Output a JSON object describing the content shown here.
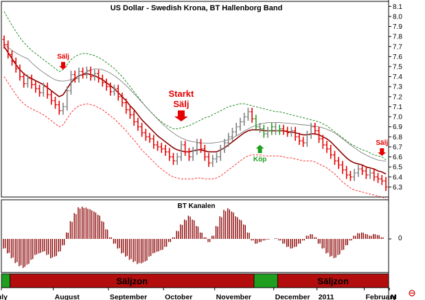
{
  "chart_data": {
    "type": "line",
    "title": "US Dollar - Swedish Krona, BT Hallenborg Band",
    "price_panel": {
      "ylim": [
        6.2,
        8.15
      ],
      "yticks": [
        "8.1",
        "8.0",
        "7.9",
        "7.8",
        "7.7",
        "7.6",
        "7.5",
        "7.4",
        "7.3",
        "7.2",
        "7.1",
        "7.0",
        "6.9",
        "6.8",
        "6.7",
        "6.6",
        "6.5",
        "6.4",
        "6.3"
      ],
      "ytick_values": [
        8.1,
        8.0,
        7.9,
        7.8,
        7.7,
        7.6,
        7.5,
        7.4,
        7.3,
        7.2,
        7.1,
        7.0,
        6.9,
        6.8,
        6.7,
        6.6,
        6.5,
        6.4,
        6.3
      ],
      "close": [
        7.72,
        7.62,
        7.55,
        7.48,
        7.4,
        7.33,
        7.38,
        7.32,
        7.28,
        7.24,
        7.3,
        7.22,
        7.16,
        7.12,
        7.06,
        7.1,
        7.26,
        7.42,
        7.38,
        7.45,
        7.42,
        7.46,
        7.4,
        7.43,
        7.38,
        7.34,
        7.3,
        7.25,
        7.28,
        7.2,
        7.14,
        7.07,
        7.02,
        6.95,
        6.9,
        6.84,
        6.8,
        6.78,
        6.72,
        6.7,
        6.68,
        6.65,
        6.6,
        6.56,
        6.6,
        6.72,
        6.65,
        6.6,
        6.66,
        6.74,
        6.68,
        6.6,
        6.54,
        6.58,
        6.6,
        6.68,
        6.74,
        6.8,
        6.85,
        6.9,
        6.95,
        7.0,
        7.05,
        6.98,
        6.9,
        6.88,
        6.83,
        6.86,
        6.9,
        6.86,
        6.88,
        6.86,
        6.84,
        6.86,
        6.8,
        6.76,
        6.74,
        6.82,
        6.9,
        6.86,
        6.78,
        6.72,
        6.68,
        6.62,
        6.56,
        6.52,
        6.47,
        6.42,
        6.4,
        6.44,
        6.48,
        6.46,
        6.42,
        6.44,
        6.4,
        6.38,
        6.36,
        6.3
      ],
      "series": [
        {
          "name": "",
          "role": "moving-average",
          "color": "#8b0000",
          "values": [
            7.7,
            7.64,
            7.58,
            7.52,
            7.47,
            7.43,
            7.4,
            7.38,
            7.36,
            7.34,
            7.32,
            7.29,
            7.26,
            7.23,
            7.2,
            7.22,
            7.28,
            7.34,
            7.38,
            7.41,
            7.42,
            7.43,
            7.42,
            7.41,
            7.39,
            7.37,
            7.34,
            7.31,
            7.28,
            7.24,
            7.2,
            7.16,
            7.11,
            7.07,
            7.02,
            6.97,
            6.93,
            6.89,
            6.85,
            6.81,
            6.78,
            6.75,
            6.72,
            6.69,
            6.67,
            6.66,
            6.65,
            6.65,
            6.66,
            6.67,
            6.67,
            6.66,
            6.65,
            6.65,
            6.65,
            6.67,
            6.69,
            6.72,
            6.75,
            6.78,
            6.81,
            6.84,
            6.86,
            6.87,
            6.87,
            6.87,
            6.86,
            6.86,
            6.86,
            6.86,
            6.86,
            6.86,
            6.85,
            6.85,
            6.84,
            6.83,
            6.82,
            6.82,
            6.83,
            6.83,
            6.82,
            6.8,
            6.78,
            6.75,
            6.71,
            6.67,
            6.63,
            6.59,
            6.56,
            6.54,
            6.53,
            6.52,
            6.5,
            6.49,
            6.48,
            6.46,
            6.45,
            6.43
          ]
        },
        {
          "name": "",
          "role": "upper-band",
          "color": "#228b22",
          "values": [
            8.05,
            7.98,
            7.91,
            7.85,
            7.79,
            7.74,
            7.7,
            7.66,
            7.63,
            7.6,
            7.57,
            7.54,
            7.51,
            7.48,
            7.45,
            7.47,
            7.52,
            7.57,
            7.6,
            7.62,
            7.63,
            7.63,
            7.62,
            7.61,
            7.59,
            7.57,
            7.54,
            7.51,
            7.48,
            7.44,
            7.4,
            7.35,
            7.3,
            7.25,
            7.2,
            7.15,
            7.1,
            7.06,
            7.02,
            6.98,
            6.95,
            6.92,
            6.9,
            6.88,
            6.88,
            6.89,
            6.9,
            6.91,
            6.93,
            6.95,
            6.97,
            6.99,
            7.0,
            7.02,
            7.04,
            7.06,
            7.08,
            7.1,
            7.11,
            7.12,
            7.13,
            7.13,
            7.12,
            7.11,
            7.1,
            7.09,
            7.08,
            7.07,
            7.06,
            7.05,
            7.05,
            7.04,
            7.03,
            7.02,
            7.01,
            7.0,
            6.99,
            6.98,
            6.97,
            6.96,
            6.95,
            6.93,
            6.91,
            6.88,
            6.85,
            6.82,
            6.79,
            6.76,
            6.73,
            6.71,
            6.69,
            6.67,
            6.66,
            6.64,
            6.62,
            6.61,
            6.6,
            6.57
          ]
        },
        {
          "name": "",
          "role": "lower-band",
          "color": "#ff3030",
          "values": [
            7.4,
            7.34,
            7.28,
            7.22,
            7.17,
            7.13,
            7.1,
            7.08,
            7.06,
            7.04,
            7.02,
            6.99,
            6.96,
            6.93,
            6.9,
            6.92,
            6.98,
            7.04,
            7.08,
            7.11,
            7.12,
            7.13,
            7.12,
            7.11,
            7.09,
            7.07,
            7.04,
            7.01,
            6.98,
            6.94,
            6.9,
            6.86,
            6.81,
            6.77,
            6.72,
            6.67,
            6.63,
            6.59,
            6.55,
            6.51,
            6.48,
            6.45,
            6.42,
            6.4,
            6.39,
            6.38,
            6.38,
            6.38,
            6.38,
            6.39,
            6.39,
            6.38,
            6.38,
            6.38,
            6.39,
            6.41,
            6.44,
            6.47,
            6.5,
            6.53,
            6.56,
            6.59,
            6.61,
            6.62,
            6.62,
            6.62,
            6.61,
            6.61,
            6.61,
            6.61,
            6.61,
            6.6,
            6.59,
            6.59,
            6.58,
            6.57,
            6.56,
            6.56,
            6.56,
            6.55,
            6.53,
            6.51,
            6.49,
            6.46,
            6.43,
            6.39,
            6.35,
            6.32,
            6.29,
            6.27,
            6.26,
            6.25,
            6.24,
            6.23,
            6.22,
            6.21,
            6.2,
            6.18
          ]
        }
      ]
    },
    "indicator_panel": {
      "title": "BT Kanalen",
      "ytick": "0",
      "ylim": [
        -1.0,
        1.0
      ],
      "values": [
        -0.3,
        -0.45,
        -0.6,
        -0.75,
        -0.85,
        -0.9,
        -0.8,
        -0.65,
        -0.5,
        -0.45,
        -0.4,
        -0.5,
        -0.6,
        -0.55,
        -0.4,
        -0.2,
        0.2,
        0.55,
        0.8,
        0.98,
        1.0,
        0.97,
        0.92,
        0.85,
        0.75,
        0.55,
        0.3,
        0.05,
        -0.15,
        -0.3,
        -0.45,
        -0.55,
        -0.65,
        -0.72,
        -0.78,
        -0.76,
        -0.7,
        -0.55,
        -0.45,
        -0.4,
        -0.35,
        -0.25,
        -0.1,
        0.05,
        0.25,
        0.45,
        0.6,
        0.72,
        0.6,
        0.4,
        0.2,
        0.05,
        -0.1,
        0.1,
        0.4,
        0.7,
        0.9,
        0.95,
        0.85,
        0.7,
        0.6,
        0.45,
        0.2,
        -0.05,
        -0.15,
        -0.1,
        -0.05,
        -0.02,
        0.0,
        0.02,
        -0.05,
        -0.15,
        -0.25,
        -0.3,
        -0.25,
        -0.15,
        -0.05,
        0.1,
        0.15,
        0.05,
        -0.15,
        -0.3,
        -0.45,
        -0.55,
        -0.6,
        -0.5,
        -0.35,
        -0.2,
        -0.05,
        0.1,
        0.18,
        0.2,
        0.15,
        0.1,
        0.15,
        0.12,
        0.05,
        0.0
      ]
    },
    "zone_bar": {
      "segments": [
        {
          "label": "",
          "color": "#1f9e1f",
          "from": 0,
          "to": 2
        },
        {
          "label": "Säljzon",
          "color": "#b40d0d",
          "from": 2,
          "to": 64
        },
        {
          "label": "",
          "color": "#1f9e1f",
          "from": 64,
          "to": 70
        },
        {
          "label": "Säljzon",
          "color": "#b40d0d",
          "from": 70,
          "to": 98
        }
      ]
    },
    "x_axis": {
      "labels": [
        {
          "text": "July",
          "index": -1
        },
        {
          "text": "August",
          "index": 13
        },
        {
          "text": "September",
          "index": 27
        },
        {
          "text": "October",
          "index": 41
        },
        {
          "text": "November",
          "index": 54
        },
        {
          "text": "December",
          "index": 69
        },
        {
          "text": "2011",
          "index": 80
        },
        {
          "text": "February",
          "index": 92
        },
        {
          "text": "M",
          "index": 99
        }
      ]
    },
    "annotations": [
      {
        "lines": [
          "Sälj"
        ],
        "color": "#e60000",
        "direction": "down",
        "index": 15,
        "price": 7.58
      },
      {
        "lines": [
          "Starkt",
          "Sälj"
        ],
        "color": "#e60000",
        "direction": "down",
        "index": 45,
        "price": 7.2,
        "large": true
      },
      {
        "lines": [
          "Köp"
        ],
        "color": "#1f9e1f",
        "direction": "up",
        "index": 65,
        "price": 6.72
      },
      {
        "lines": [
          "Sälj"
        ],
        "color": "#e60000",
        "direction": "down",
        "index": 96,
        "price": 6.72
      }
    ],
    "colors": {
      "up_bar": "#808080",
      "down_bar": "#e60000",
      "buy_bar": "#1f9e1f",
      "histogram": "#8b0000",
      "gray_line": "#707070"
    }
  }
}
